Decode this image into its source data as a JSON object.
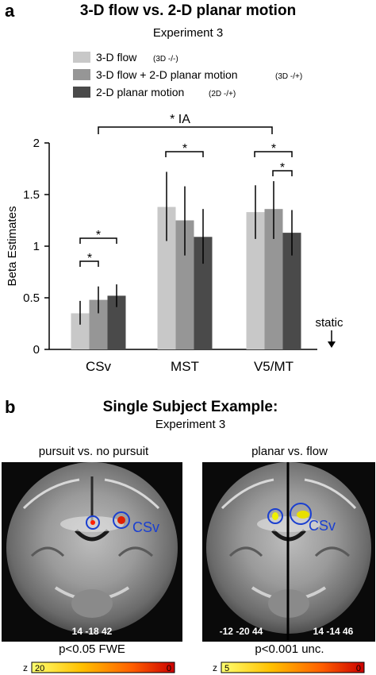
{
  "panel_a": {
    "letter": "a",
    "title": "3-D flow  vs.  2-D planar motion",
    "subtitle": "Experiment 3",
    "legend": [
      {
        "label": "3-D flow",
        "code": "(3D -/-)",
        "color": "#c8c8c8"
      },
      {
        "label": "3-D flow + 2-D planar motion",
        "code": "(3D -/+)",
        "color": "#969696"
      },
      {
        "label": "2-D planar motion",
        "code": "(2D -/+)",
        "color": "#4a4a4a"
      }
    ],
    "ia_label": "* IA",
    "star": "*",
    "static_label": "static"
  },
  "chart_data": {
    "type": "bar",
    "categories": [
      "CSv",
      "MST",
      "V5/MT"
    ],
    "series": [
      {
        "name": "3-D flow (3D -/-)",
        "values": [
          0.35,
          1.38,
          1.33
        ],
        "err_low": [
          0.24,
          1.05,
          1.07
        ],
        "err_high": [
          0.47,
          1.72,
          1.59
        ],
        "color": "#c8c8c8"
      },
      {
        "name": "3-D flow + 2-D planar motion (3D -/+)",
        "values": [
          0.48,
          1.25,
          1.36
        ],
        "err_low": [
          0.35,
          0.91,
          1.07
        ],
        "err_high": [
          0.61,
          1.58,
          1.63
        ],
        "color": "#969696"
      },
      {
        "name": "2-D planar motion (2D -/+)",
        "values": [
          0.52,
          1.09,
          1.13
        ],
        "err_low": [
          0.41,
          0.83,
          0.91
        ],
        "err_high": [
          0.63,
          1.36,
          1.35
        ],
        "color": "#4a4a4a"
      }
    ],
    "ylabel": "Beta Estimates",
    "ylim": [
      0,
      2
    ],
    "yticks": [
      0,
      0.5,
      1,
      1.5,
      2
    ],
    "ytick_labels": [
      "0",
      "0.5",
      "1",
      "1.5",
      "2"
    ],
    "grid": false
  },
  "panel_b": {
    "letter": "b",
    "title": "Single Subject Example:",
    "subtitle": "Experiment 3",
    "left": {
      "heading": "pursuit vs. no pursuit",
      "coords": "14 -18 42",
      "threshold": "p<0.05 FWE",
      "region": "CSv",
      "scale_z": "z",
      "scale_min": "20",
      "scale_max": "0",
      "scale_colors": [
        "#ffff70",
        "#ffc000",
        "#ff6000",
        "#cc0000"
      ]
    },
    "right": {
      "heading": "planar vs. flow",
      "coords_left": "-12 -20 44",
      "coords_right": "14 -14 46",
      "threshold": "p<0.001 unc.",
      "region": "CSv",
      "scale_z": "z",
      "scale_min": "5",
      "scale_max": "0",
      "scale_colors": [
        "#ffff70",
        "#ffc000",
        "#ff6000",
        "#cc0000"
      ]
    }
  }
}
